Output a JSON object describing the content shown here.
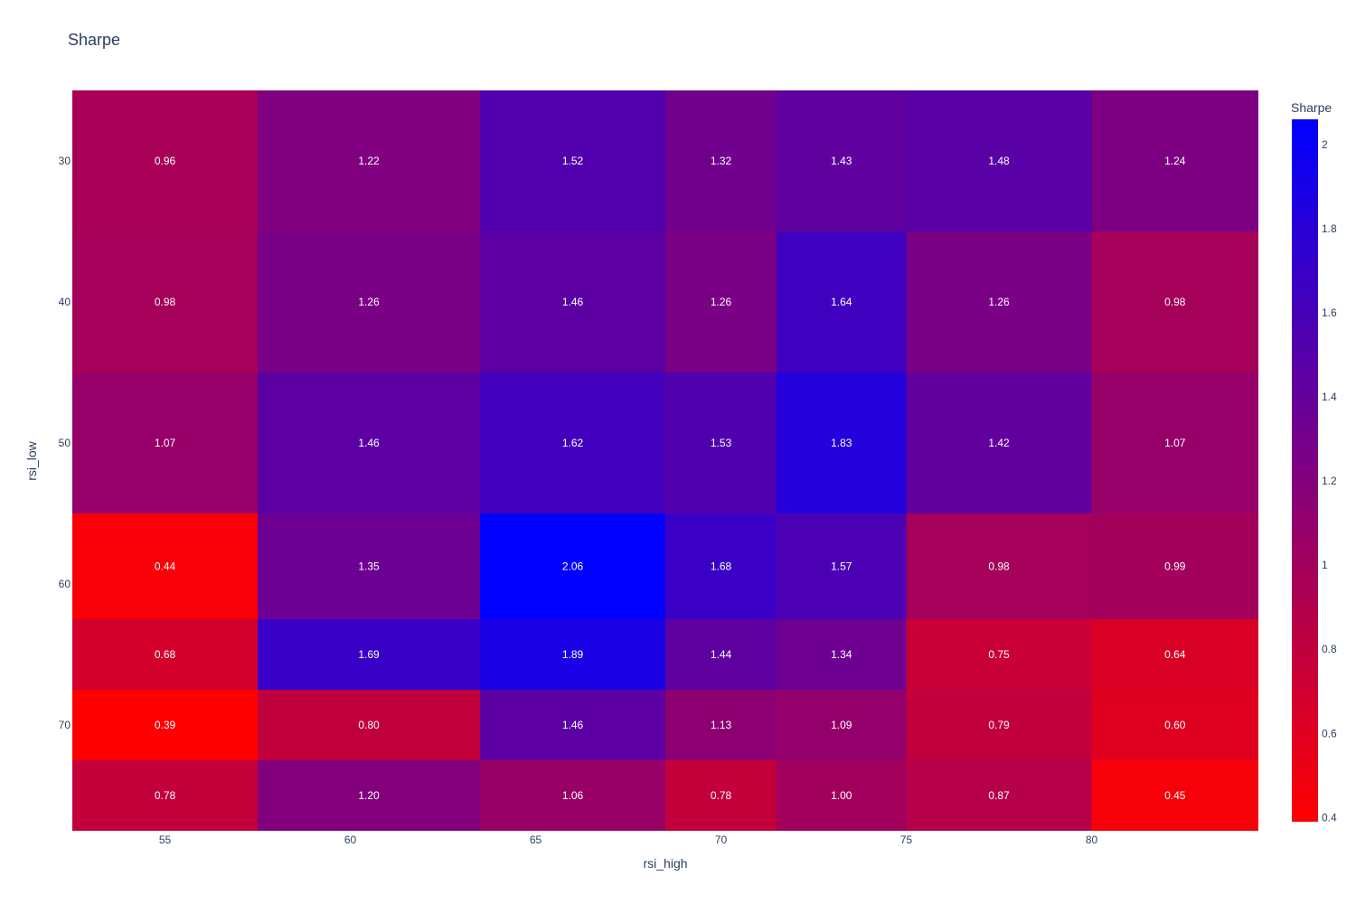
{
  "chart_data": {
    "type": "heatmap",
    "title": "Sharpe",
    "xlabel": "rsi_high",
    "ylabel": "rsi_low",
    "x_ticks": [
      "55",
      "60",
      "65",
      "70",
      "75",
      "80"
    ],
    "y_ticks": [
      "30",
      "40",
      "50",
      "60",
      "70"
    ],
    "x_edges": [
      52.5,
      57.5,
      63.5,
      68.5,
      71.5,
      75,
      80,
      85
    ],
    "y_edges": [
      25,
      35,
      45,
      55,
      62.5,
      67.5,
      72.5,
      77.5
    ],
    "x_range": [
      52.5,
      84.5
    ],
    "y_range": [
      25,
      77.5
    ],
    "z": [
      [
        0.96,
        1.22,
        1.52,
        1.32,
        1.43,
        1.48,
        1.24
      ],
      [
        0.98,
        1.26,
        1.46,
        1.26,
        1.64,
        1.26,
        0.98
      ],
      [
        1.07,
        1.46,
        1.62,
        1.53,
        1.83,
        1.42,
        1.07
      ],
      [
        0.44,
        1.35,
        2.06,
        1.68,
        1.57,
        0.98,
        0.99
      ],
      [
        0.68,
        1.69,
        1.89,
        1.44,
        1.34,
        0.75,
        0.64
      ],
      [
        0.39,
        0.8,
        1.46,
        1.13,
        1.09,
        0.79,
        0.6
      ],
      [
        0.78,
        1.2,
        1.06,
        0.78,
        1.0,
        0.87,
        0.45
      ]
    ],
    "text": [
      [
        "0.96",
        "1.22",
        "1.52",
        "1.32",
        "1.43",
        "1.48",
        "1.24"
      ],
      [
        "0.98",
        "1.26",
        "1.46",
        "1.26",
        "1.64",
        "1.26",
        "0.98"
      ],
      [
        "1.07",
        "1.46",
        "1.62",
        "1.53",
        "1.83",
        "1.42",
        "1.07"
      ],
      [
        "0.44",
        "1.35",
        "2.06",
        "1.68",
        "1.57",
        "0.98",
        "0.99"
      ],
      [
        "0.68",
        "1.69",
        "1.89",
        "1.44",
        "1.34",
        "0.75",
        "0.64"
      ],
      [
        "0.39",
        "0.80",
        "1.46",
        "1.13",
        "1.09",
        "0.79",
        "0.60"
      ],
      [
        "0.78",
        "1.20",
        "1.06",
        "0.78",
        "1.00",
        "0.87",
        "0.45"
      ]
    ],
    "colorscale": {
      "title": "Sharpe",
      "min": 0.39,
      "max": 2.06,
      "low_color": "#ff0000",
      "high_color": "#0000ff",
      "ticks": [
        "0.4",
        "0.6",
        "0.8",
        "1",
        "1.2",
        "1.4",
        "1.6",
        "1.8",
        "2"
      ]
    },
    "grid": false,
    "legend": "colorbar-right"
  }
}
